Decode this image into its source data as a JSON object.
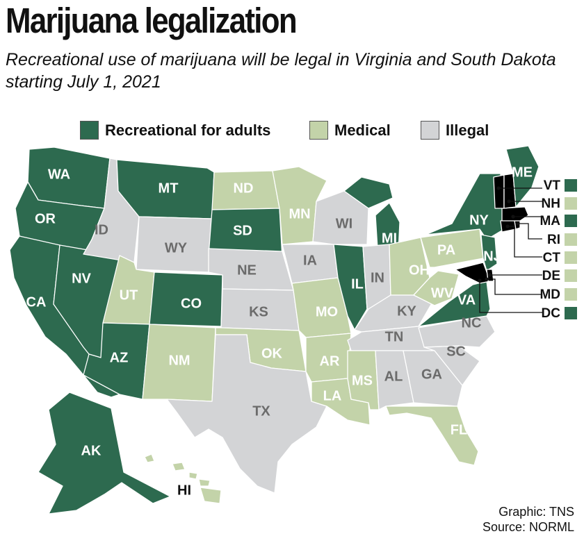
{
  "title": "Marijuana legalization",
  "subtitle": "Recreational use of marijuana will be legal in Virginia and South Dakota starting July 1, 2021",
  "legend": [
    {
      "key": "rec",
      "label": "Recreational for adults"
    },
    {
      "key": "med",
      "label": "Medical"
    },
    {
      "key": "ill",
      "label": "Illegal"
    }
  ],
  "colors": {
    "rec": "#2d6a4f",
    "med": "#c3d3a9",
    "ill": "#d3d4d6",
    "label_on_rec": "#ffffff",
    "label_on_med": "#ffffff",
    "label_on_ill": "#6b6b6b"
  },
  "states": {
    "WA": {
      "status": "rec",
      "label": "WA"
    },
    "OR": {
      "status": "rec",
      "label": "OR"
    },
    "CA": {
      "status": "rec",
      "label": "CA"
    },
    "NV": {
      "status": "rec",
      "label": "NV"
    },
    "ID": {
      "status": "ill",
      "label": "ID"
    },
    "MT": {
      "status": "rec",
      "label": "MT"
    },
    "WY": {
      "status": "ill",
      "label": "WY"
    },
    "UT": {
      "status": "med",
      "label": "UT"
    },
    "AZ": {
      "status": "rec",
      "label": "AZ"
    },
    "CO": {
      "status": "rec",
      "label": "CO"
    },
    "NM": {
      "status": "med",
      "label": "NM"
    },
    "ND": {
      "status": "med",
      "label": "ND"
    },
    "SD": {
      "status": "rec",
      "label": "SD"
    },
    "NE": {
      "status": "ill",
      "label": "NE"
    },
    "KS": {
      "status": "ill",
      "label": "KS"
    },
    "OK": {
      "status": "med",
      "label": "OK"
    },
    "TX": {
      "status": "ill",
      "label": "TX"
    },
    "MN": {
      "status": "med",
      "label": "MN"
    },
    "IA": {
      "status": "ill",
      "label": "IA"
    },
    "MO": {
      "status": "med",
      "label": "MO"
    },
    "AR": {
      "status": "med",
      "label": "AR"
    },
    "LA": {
      "status": "med",
      "label": "LA"
    },
    "WI": {
      "status": "ill",
      "label": "WI"
    },
    "IL": {
      "status": "rec",
      "label": "IL"
    },
    "MI": {
      "status": "rec",
      "label": "MI"
    },
    "IN": {
      "status": "ill",
      "label": "IN"
    },
    "OH": {
      "status": "med",
      "label": "OH"
    },
    "KY": {
      "status": "ill",
      "label": "KY"
    },
    "TN": {
      "status": "ill",
      "label": "TN"
    },
    "MS": {
      "status": "med",
      "label": "MS"
    },
    "AL": {
      "status": "ill",
      "label": "AL"
    },
    "GA": {
      "status": "ill",
      "label": "GA"
    },
    "FL": {
      "status": "med",
      "label": "FL"
    },
    "SC": {
      "status": "ill",
      "label": "SC"
    },
    "NC": {
      "status": "ill",
      "label": "NC"
    },
    "VA": {
      "status": "rec",
      "label": "VA"
    },
    "WV": {
      "status": "med",
      "label": "WV"
    },
    "PA": {
      "status": "med",
      "label": "PA"
    },
    "NY": {
      "status": "rec",
      "label": "NY"
    },
    "NJ": {
      "status": "rec",
      "label": "NJ"
    },
    "ME": {
      "status": "rec",
      "label": "ME"
    },
    "AK": {
      "status": "rec",
      "label": "AK"
    },
    "HI": {
      "status": "med",
      "label": "HI"
    }
  },
  "northeast_callouts": [
    {
      "code": "VT",
      "status": "rec"
    },
    {
      "code": "NH",
      "status": "med"
    },
    {
      "code": "MA",
      "status": "rec"
    },
    {
      "code": "RI",
      "status": "med"
    },
    {
      "code": "CT",
      "status": "med"
    },
    {
      "code": "DE",
      "status": "med"
    },
    {
      "code": "MD",
      "status": "med"
    },
    {
      "code": "DC",
      "status": "rec"
    }
  ],
  "credit": {
    "graphic": "Graphic: TNS",
    "source": "Source: NORML"
  }
}
